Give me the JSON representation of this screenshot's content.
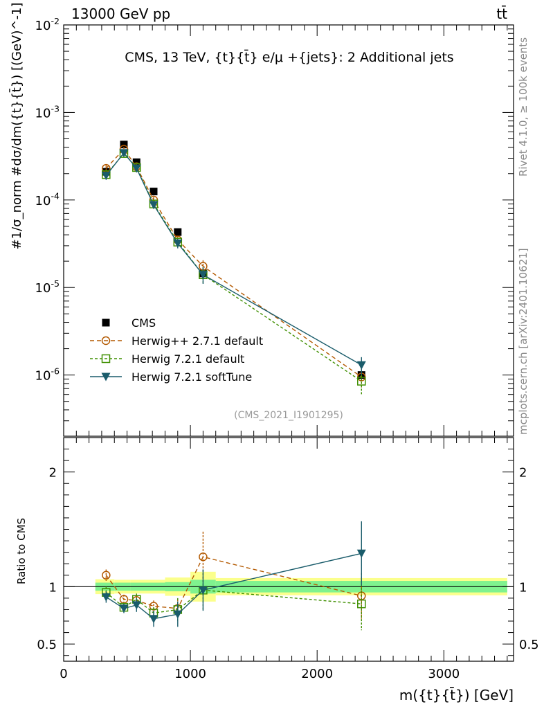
{
  "header": {
    "left": "13000 GeV pp",
    "right": "tt̄"
  },
  "side_labels": {
    "rivet": "Rivet 4.1.0, ≥ 100k events",
    "mcplots": "mcplots.cern.ch [arXiv:2401.10621]"
  },
  "chart_data": [
    {
      "type": "line",
      "panel": "main",
      "title": "CMS, 13 TeV, {t}{t̄} e/μ +{jets}: 2 Additional jets",
      "analysis_tag": "(CMS_2021_I1901295)",
      "ylabel": "#1/σ_norm #dσ/dm({t}{t̄}) [(GeV)^-1]",
      "yscale": "log",
      "ylim": [
        2e-07,
        0.01
      ],
      "y_ticks": [
        {
          "v": 1e-06,
          "label": "10^-6"
        },
        {
          "v": 1e-05,
          "label": "10^-5"
        },
        {
          "v": 0.0001,
          "label": "10^-4"
        },
        {
          "v": 0.001,
          "label": "10^-3"
        },
        {
          "v": 0.01,
          "label": "10^-2"
        }
      ],
      "xlim": [
        0,
        3550
      ],
      "x": [
        335,
        475,
        575,
        710,
        900,
        1100,
        2350
      ],
      "series": [
        {
          "name": "CMS",
          "color": "#000000",
          "marker": "square-filled",
          "dash": "",
          "values": [
            0.00021,
            0.00043,
            0.00027,
            0.000125,
            4.3e-05,
            1.45e-05,
            1e-06
          ],
          "err_low": [
            2.5e-05,
            3e-05,
            2e-05,
            1e-05,
            4e-06,
            2e-06,
            1.5e-07
          ],
          "err_high": [
            2.5e-05,
            3e-05,
            2e-05,
            1e-05,
            4e-06,
            2e-06,
            1.5e-07
          ]
        },
        {
          "name": "Herwig++ 2.7.1 default",
          "color": "#b35900",
          "marker": "circle-open",
          "dash": "6,4",
          "values": [
            0.00023,
            0.00038,
            0.00024,
            0.0001,
            3.5e-05,
            1.75e-05,
            9.5e-07
          ],
          "err_low": [
            2e-05,
            2.5e-05,
            2e-05,
            8e-06,
            4e-06,
            3e-06,
            2.5e-07
          ],
          "err_high": [
            2e-05,
            2.5e-05,
            2e-05,
            8e-06,
            4e-06,
            3e-06,
            2.5e-07
          ]
        },
        {
          "name": "Herwig 7.2.1 default",
          "color": "#3f8f00",
          "marker": "square-open",
          "dash": "4,3",
          "values": [
            0.000195,
            0.00034,
            0.000235,
            9e-05,
            3.3e-05,
            1.4e-05,
            8.5e-07
          ],
          "err_low": [
            2e-05,
            2.5e-05,
            2e-05,
            8e-06,
            4e-06,
            3e-06,
            2.5e-07
          ],
          "err_high": [
            2e-05,
            2.5e-05,
            2e-05,
            8e-06,
            4e-06,
            3e-06,
            2.5e-07
          ]
        },
        {
          "name": "Herwig 7.2.1 softTune",
          "color": "#1a5c6b",
          "marker": "triangle-down-filled",
          "dash": "",
          "values": [
            0.00019,
            0.000345,
            0.00023,
            8.8e-05,
            3.2e-05,
            1.4e-05,
            1.3e-06
          ],
          "err_low": [
            2e-05,
            2.5e-05,
            2e-05,
            8e-06,
            4e-06,
            3e-06,
            3e-07
          ],
          "err_high": [
            2e-05,
            2.5e-05,
            2e-05,
            8e-06,
            4e-06,
            3e-06,
            3e-07
          ]
        }
      ],
      "legend": {
        "position": "center-left"
      }
    },
    {
      "type": "line",
      "panel": "ratio",
      "ylabel": "Ratio to CMS",
      "xlabel": "m({t}{t̄}) [GeV]",
      "ylim": [
        0.35,
        2.3
      ],
      "y_ticks": [
        {
          "v": 0.5,
          "label": "0.5"
        },
        {
          "v": 1,
          "label": "1"
        },
        {
          "v": 2,
          "label": "2"
        }
      ],
      "xlim": [
        0,
        3550
      ],
      "x_ticks": [
        {
          "v": 0,
          "label": "0"
        },
        {
          "v": 1000,
          "label": "1000"
        },
        {
          "v": 2000,
          "label": "2000"
        },
        {
          "v": 3000,
          "label": "3000"
        }
      ],
      "x": [
        335,
        475,
        575,
        710,
        900,
        1100,
        2350
      ],
      "bands": [
        {
          "x_from": 250,
          "x_to": 400,
          "stat": 0.035,
          "total": 0.065
        },
        {
          "x_from": 400,
          "x_to": 525,
          "stat": 0.035,
          "total": 0.06
        },
        {
          "x_from": 525,
          "x_to": 800,
          "stat": 0.035,
          "total": 0.06
        },
        {
          "x_from": 800,
          "x_to": 1000,
          "stat": 0.04,
          "total": 0.08
        },
        {
          "x_from": 1000,
          "x_to": 1200,
          "stat": 0.06,
          "total": 0.13
        },
        {
          "x_from": 1200,
          "x_to": 3500,
          "stat": 0.05,
          "total": 0.075
        }
      ],
      "band_colors": {
        "stat": "#7ff28f",
        "total": "#fbff8c"
      },
      "series": [
        {
          "name": "Herwig++ 2.7.1 default",
          "color": "#b35900",
          "marker": "circle-open",
          "dash": "6,4",
          "values": [
            1.1,
            0.89,
            0.88,
            0.83,
            0.81,
            1.26,
            0.92
          ],
          "err_low": [
            0.05,
            0.04,
            0.05,
            0.05,
            0.08,
            0.22,
            0.2
          ],
          "err_high": [
            0.05,
            0.04,
            0.05,
            0.05,
            0.08,
            0.22,
            0.2
          ]
        },
        {
          "name": "Herwig 7.2.1 default",
          "color": "#3f8f00",
          "marker": "square-open",
          "dash": "4,3",
          "values": [
            0.95,
            0.82,
            0.89,
            0.77,
            0.8,
            0.97,
            0.85
          ],
          "err_low": [
            0.05,
            0.04,
            0.05,
            0.05,
            0.1,
            0.18,
            0.23
          ],
          "err_high": [
            0.05,
            0.04,
            0.05,
            0.05,
            0.1,
            0.18,
            0.23
          ]
        },
        {
          "name": "Herwig 7.2.1 softTune",
          "color": "#1a5c6b",
          "marker": "triangle-down-filled",
          "dash": "",
          "values": [
            0.91,
            0.81,
            0.84,
            0.72,
            0.76,
            0.97,
            1.29
          ],
          "err_low": [
            0.05,
            0.04,
            0.06,
            0.07,
            0.11,
            0.18,
            0.28
          ],
          "err_high": [
            0.05,
            0.04,
            0.06,
            0.07,
            0.11,
            0.18,
            0.28
          ]
        }
      ]
    }
  ]
}
